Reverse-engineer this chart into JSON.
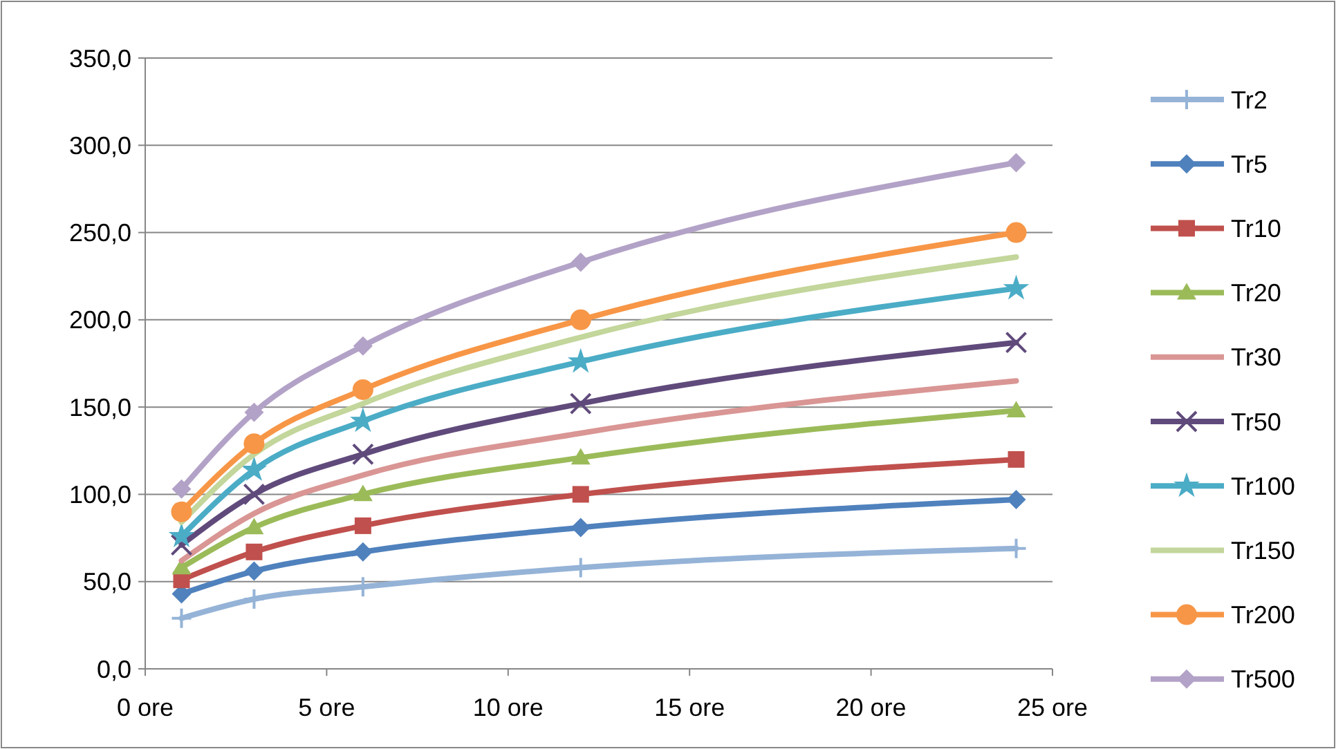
{
  "chart_data": {
    "type": "line",
    "x": [
      1,
      3,
      6,
      12,
      24
    ],
    "xlim": [
      0,
      25
    ],
    "xticks": [
      {
        "value": 0,
        "label": "0 ore"
      },
      {
        "value": 5,
        "label": "5 ore"
      },
      {
        "value": 10,
        "label": "10 ore"
      },
      {
        "value": 15,
        "label": "15 ore"
      },
      {
        "value": 20,
        "label": "20 ore"
      },
      {
        "value": 25,
        "label": "25 ore"
      }
    ],
    "ylim": [
      0,
      350
    ],
    "yticks": [
      {
        "value": 0,
        "label": "0,0"
      },
      {
        "value": 50,
        "label": "50,0"
      },
      {
        "value": 100,
        "label": "100,0"
      },
      {
        "value": 150,
        "label": "150,0"
      },
      {
        "value": 200,
        "label": "200,0"
      },
      {
        "value": 250,
        "label": "250,0"
      },
      {
        "value": 300,
        "label": "300,0"
      },
      {
        "value": 350,
        "label": "350,0"
      }
    ],
    "grid": "y",
    "legend": "right",
    "series": [
      {
        "name": "Tr2",
        "color": "#95b3d7",
        "marker": "plus",
        "values": [
          29,
          40,
          47,
          58,
          69
        ]
      },
      {
        "name": "Tr5",
        "color": "#4f81bd",
        "marker": "diamond",
        "values": [
          43,
          56,
          67,
          81,
          97
        ]
      },
      {
        "name": "Tr10",
        "color": "#c0504d",
        "marker": "square",
        "values": [
          51,
          67,
          82,
          100,
          120
        ]
      },
      {
        "name": "Tr20",
        "color": "#9bbb59",
        "marker": "triangle",
        "values": [
          58,
          81,
          100,
          121,
          148
        ]
      },
      {
        "name": "Tr30",
        "color": "#d99694",
        "marker": "none",
        "values": [
          62,
          89,
          111,
          135,
          165
        ]
      },
      {
        "name": "Tr50",
        "color": "#604a7b",
        "marker": "cross",
        "values": [
          71,
          100,
          123,
          152,
          187
        ]
      },
      {
        "name": "Tr100",
        "color": "#4bacc6",
        "marker": "star",
        "values": [
          76,
          114,
          142,
          176,
          218
        ]
      },
      {
        "name": "Tr150",
        "color": "#c3d69b",
        "marker": "none",
        "values": [
          84,
          123,
          152,
          190,
          236
        ]
      },
      {
        "name": "Tr200",
        "color": "#f79646",
        "marker": "circle",
        "values": [
          90,
          129,
          160,
          200,
          250
        ]
      },
      {
        "name": "Tr500",
        "color": "#b3a2c7",
        "marker": "diamond",
        "values": [
          103,
          147,
          185,
          233,
          290
        ]
      }
    ]
  }
}
